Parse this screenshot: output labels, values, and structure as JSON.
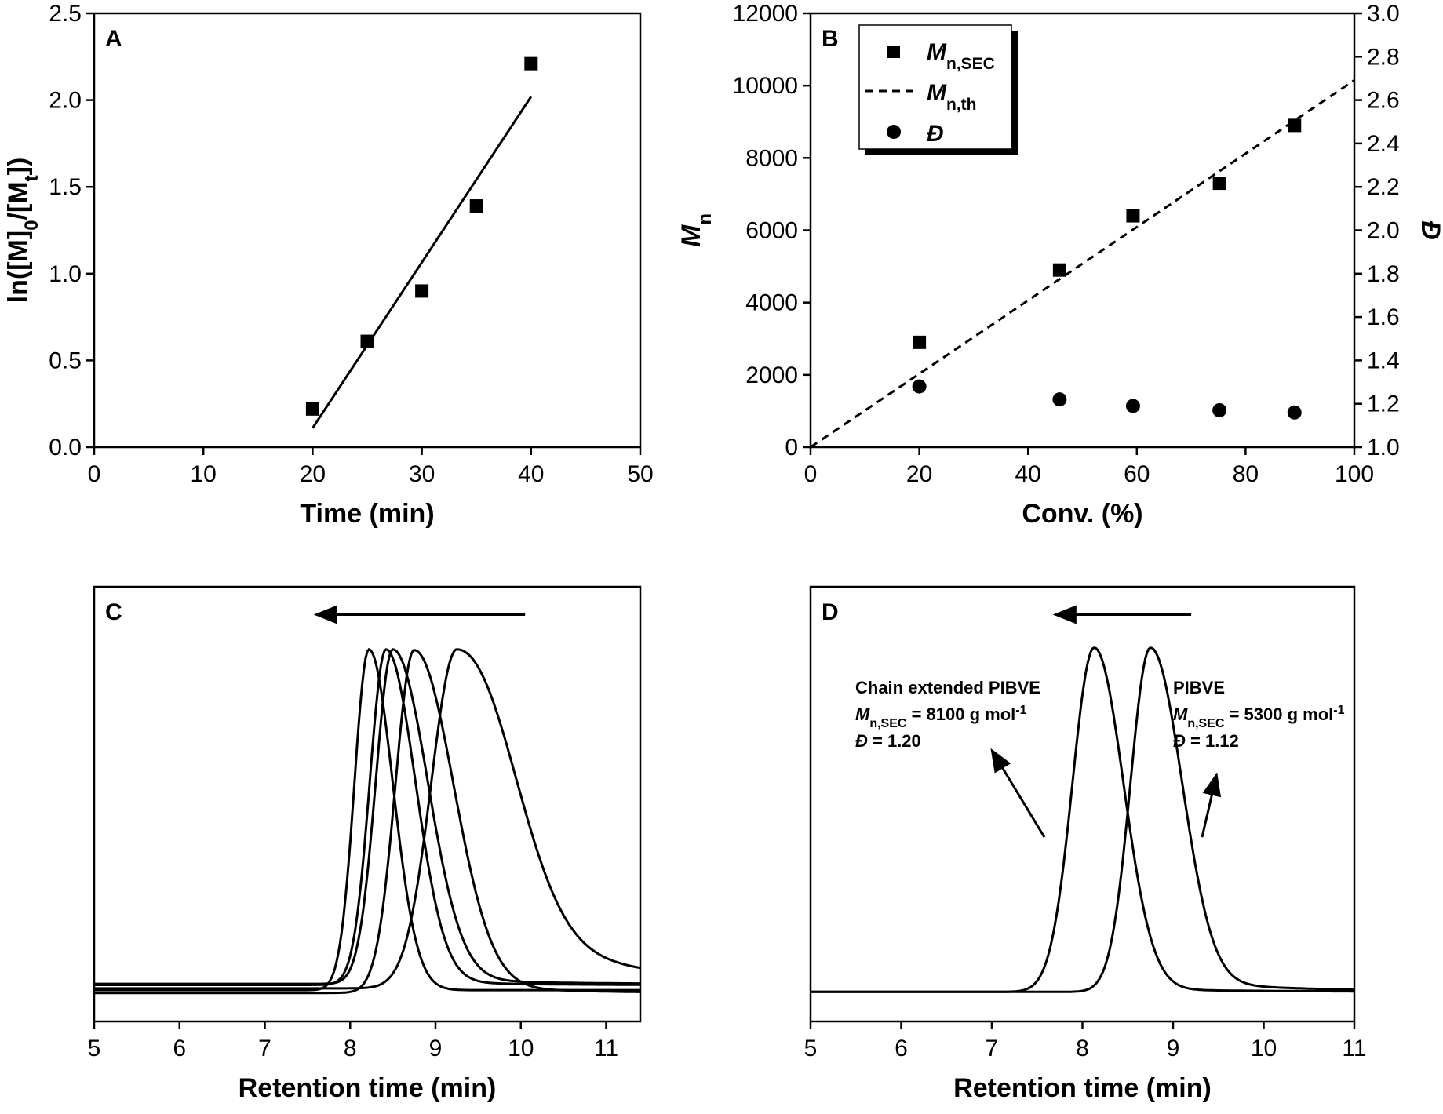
{
  "chart_data": [
    {
      "id": "A",
      "type": "scatter",
      "panel_label": "A",
      "xlabel": "Time (min)",
      "ylabel": {
        "main": "ln([M]",
        "sub1": "0",
        "mid": "/[M",
        "sub2": "t",
        "end": "])"
      },
      "xlim": [
        0,
        50
      ],
      "ylim": [
        0,
        2.5
      ],
      "xticks": [
        0,
        10,
        20,
        30,
        40,
        50
      ],
      "xtick_labels": [
        "0",
        "10",
        "20",
        "30",
        "40",
        "50"
      ],
      "yticks": [
        0,
        0.5,
        1,
        1.5,
        2,
        2.5
      ],
      "ytick_labels": [
        "0.0",
        "0.5",
        "1.0",
        "1.5",
        "2.0",
        "2.5"
      ],
      "series": [
        {
          "name": "data",
          "marker": "square",
          "x": [
            20,
            25,
            30,
            35,
            40
          ],
          "y": [
            0.22,
            0.61,
            0.9,
            1.39,
            2.21
          ]
        },
        {
          "name": "linear fit",
          "style": "line",
          "x": [
            20,
            40
          ],
          "y": [
            0.11,
            2.02
          ]
        }
      ]
    },
    {
      "id": "B",
      "type": "scatter",
      "panel_label": "B",
      "xlabel": "Conv. (%)",
      "ylabel_left": {
        "main": "M",
        "sub": "n"
      },
      "ylabel_right": "Đ",
      "xlim": [
        0,
        100
      ],
      "ylim_left": [
        0,
        12000
      ],
      "ylim_right": [
        1.0,
        3.0
      ],
      "xticks": [
        0,
        20,
        40,
        60,
        80,
        100
      ],
      "xtick_labels": [
        "0",
        "20",
        "40",
        "60",
        "80",
        "100"
      ],
      "yticks_left": [
        0,
        2000,
        4000,
        6000,
        8000,
        10000,
        12000
      ],
      "ytick_labels_left": [
        "0",
        "2000",
        "4000",
        "6000",
        "8000",
        "10000",
        "12000"
      ],
      "yticks_right": [
        1.0,
        1.2,
        1.4,
        1.6,
        1.8,
        2.0,
        2.2,
        2.4,
        2.6,
        2.8,
        3.0
      ],
      "ytick_labels_right": [
        "1.0",
        "1.2",
        "1.4",
        "1.6",
        "1.8",
        "2.0",
        "2.2",
        "2.4",
        "2.6",
        "2.8",
        "3.0"
      ],
      "legend_position": "top-left",
      "series": [
        {
          "name": "Mn,SEC",
          "legend": {
            "main": "M",
            "sub": "n,SEC"
          },
          "marker": "square",
          "axis": "left",
          "x": [
            20,
            45.8,
            59.3,
            75.2,
            89.0
          ],
          "y": [
            2900,
            4900,
            6400,
            7300,
            8900
          ]
        },
        {
          "name": "Mn,th",
          "legend": {
            "main": "M",
            "sub": "n,th"
          },
          "style": "dashed-line",
          "axis": "left",
          "x": [
            0,
            100
          ],
          "y": [
            0,
            10150
          ]
        },
        {
          "name": "Đ",
          "legend": {
            "main": "Đ",
            "sub": ""
          },
          "marker": "circle",
          "axis": "right",
          "x": [
            20,
            45.8,
            59.3,
            75.2,
            89.0
          ],
          "y": [
            1.28,
            1.22,
            1.19,
            1.17,
            1.16
          ]
        }
      ]
    },
    {
      "id": "C",
      "type": "line",
      "panel_label": "C",
      "xlabel": "Retention time (min)",
      "xlim": [
        5,
        11.4
      ],
      "ylim": [
        0,
        1
      ],
      "xticks": [
        5,
        6,
        7,
        8,
        9,
        10,
        11
      ],
      "xtick_labels": [
        "5",
        "6",
        "7",
        "8",
        "9",
        "10",
        "11"
      ],
      "arrow": {
        "from": [
          10.05,
          1.17
        ],
        "to": [
          7.6,
          1.17
        ]
      },
      "series": [
        {
          "name": "trace 1",
          "peak": 8.22,
          "baseline": 0.09,
          "height": 0.98,
          "sigma_left": 0.17,
          "sigma_right": 0.28,
          "tail_amp": 0.0,
          "tail_width": 1.0
        },
        {
          "name": "trace 2",
          "peak": 8.42,
          "baseline": 0.105,
          "height": 0.965,
          "sigma_left": 0.19,
          "sigma_right": 0.34,
          "tail_amp": 0.02,
          "tail_width": 0.8
        },
        {
          "name": "trace 3",
          "peak": 8.5,
          "baseline": 0.108,
          "height": 0.962,
          "sigma_left": 0.2,
          "sigma_right": 0.4,
          "tail_amp": 0.03,
          "tail_width": 0.9
        },
        {
          "name": "trace 4",
          "peak": 8.75,
          "baseline": 0.082,
          "height": 0.986,
          "sigma_left": 0.22,
          "sigma_right": 0.45,
          "tail_amp": 0.04,
          "tail_width": 1.0
        },
        {
          "name": "trace 5",
          "peak": 9.25,
          "baseline": 0.095,
          "height": 0.975,
          "sigma_left": 0.3,
          "sigma_right": 0.6,
          "tail_amp": 0.22,
          "tail_width": 1.6
        }
      ]
    },
    {
      "id": "D",
      "type": "line",
      "panel_label": "D",
      "xlabel": "Retention time (min)",
      "xlim": [
        5,
        11
      ],
      "ylim": [
        0,
        1
      ],
      "xticks": [
        5,
        6,
        7,
        8,
        9,
        10,
        11
      ],
      "xtick_labels": [
        "5",
        "6",
        "7",
        "8",
        "9",
        "10",
        "11"
      ],
      "arrow": {
        "from": [
          9.2,
          1.17
        ],
        "to": [
          7.7,
          1.17
        ]
      },
      "series": [
        {
          "name": "Chain extended PIBVE",
          "peak": 8.13,
          "baseline": 0.085,
          "height": 0.99,
          "sigma_left": 0.24,
          "sigma_right": 0.32,
          "tail_amp": 0.01,
          "tail_width": 1.5
        },
        {
          "name": "PIBVE",
          "peak": 8.75,
          "baseline": 0.085,
          "height": 0.99,
          "sigma_left": 0.22,
          "sigma_right": 0.34,
          "tail_amp": 0.04,
          "tail_width": 1.2
        }
      ],
      "annotations": [
        {
          "title": "Chain extended PIBVE",
          "mn_main": "M",
          "mn_sub": "n,SEC",
          "mn_value": " = 8100 g mol",
          "mn_exp": "-1",
          "d_label": "Đ",
          "d_value": " = 1.20",
          "arrow_from": [
            7.58,
            0.53
          ],
          "arrow_to": [
            7.0,
            0.78
          ]
        },
        {
          "title": "PIBVE",
          "mn_main": "M",
          "mn_sub": "n,SEC",
          "mn_value": " = 5300 g mol",
          "mn_exp": "-1",
          "d_label": "Đ",
          "d_value": " = 1.12",
          "arrow_from": [
            9.32,
            0.53
          ],
          "arrow_to": [
            9.48,
            0.71
          ]
        }
      ]
    }
  ]
}
